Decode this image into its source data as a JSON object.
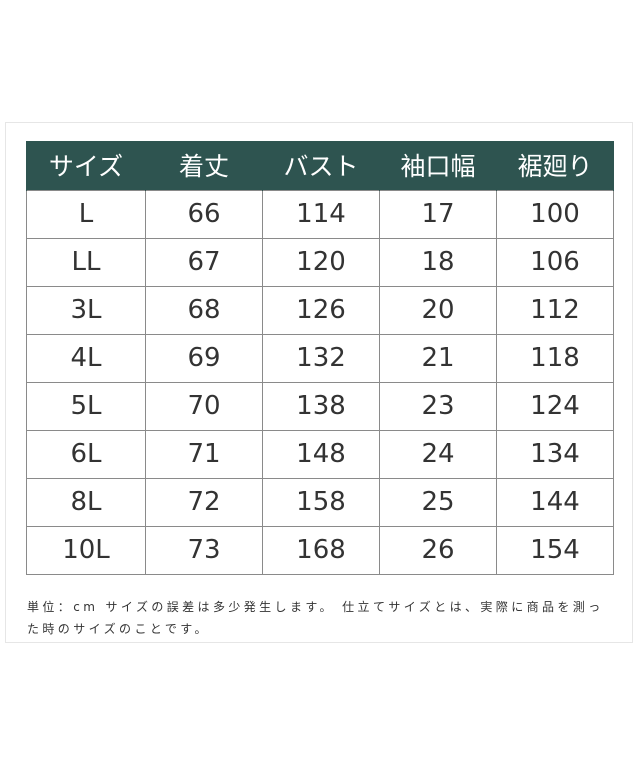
{
  "table": {
    "header": [
      "サイズ",
      "着丈",
      "バスト",
      "袖口幅",
      "裾廻り"
    ],
    "rows": [
      [
        "L",
        66,
        114,
        17,
        100
      ],
      [
        "LL",
        67,
        120,
        18,
        106
      ],
      [
        "3L",
        68,
        126,
        20,
        112
      ],
      [
        "4L",
        69,
        132,
        21,
        118
      ],
      [
        "5L",
        70,
        138,
        23,
        124
      ],
      [
        "6L",
        71,
        148,
        24,
        134
      ],
      [
        "8L",
        72,
        158,
        25,
        144
      ],
      [
        "10L",
        73,
        168,
        26,
        154
      ]
    ]
  },
  "note": "単位：cm サイズの誤差は多少発生します。 仕立てサイズとは、実際に商品を測った時のサイズのことです。"
}
